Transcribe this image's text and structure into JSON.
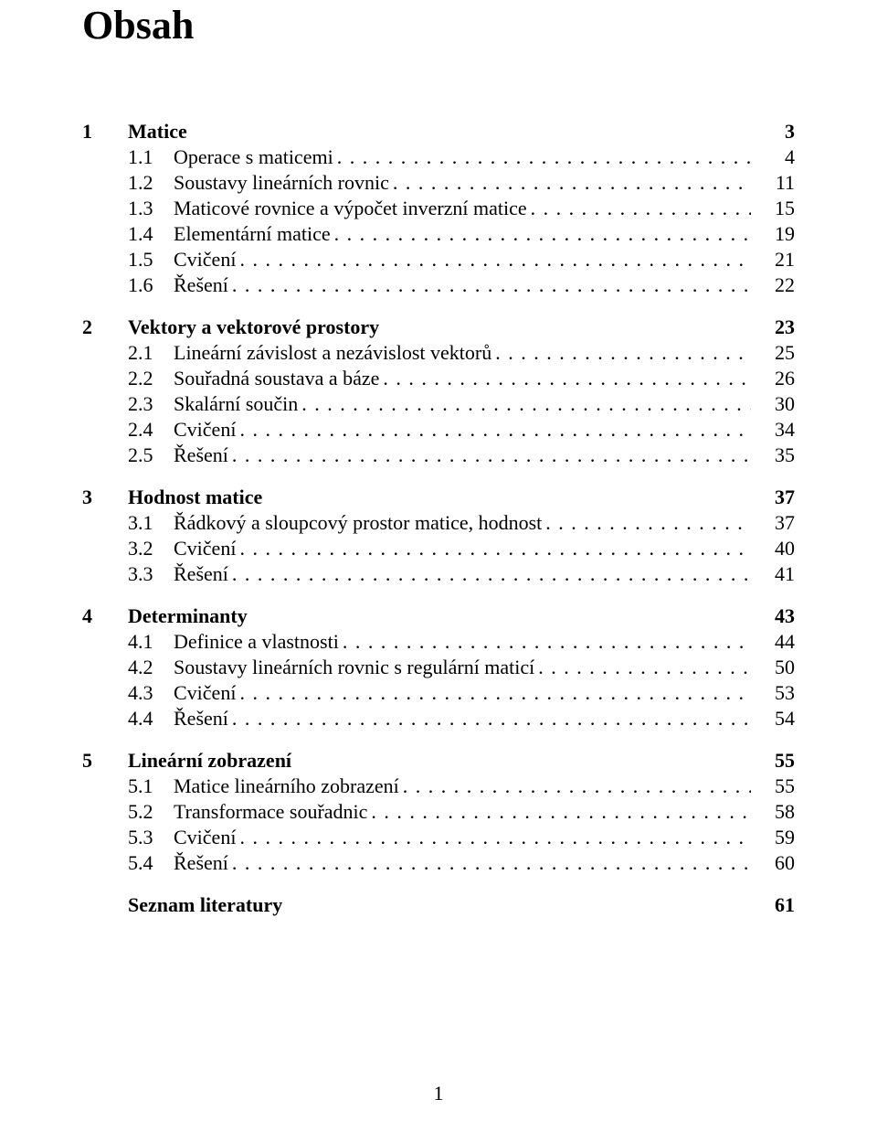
{
  "title": "Obsah",
  "page_number": "1",
  "chapters": [
    {
      "num": "1",
      "title": "Matice",
      "page": "3",
      "sections": [
        {
          "num": "1.1",
          "title": "Operace s maticemi",
          "page": "4"
        },
        {
          "num": "1.2",
          "title": "Soustavy lineárních rovnic",
          "page": "11"
        },
        {
          "num": "1.3",
          "title": "Maticové rovnice a výpočet inverzní matice",
          "page": "15"
        },
        {
          "num": "1.4",
          "title": "Elementární matice",
          "page": "19"
        },
        {
          "num": "1.5",
          "title": "Cvičení",
          "page": "21"
        },
        {
          "num": "1.6",
          "title": "Řešení",
          "page": "22"
        }
      ]
    },
    {
      "num": "2",
      "title": "Vektory a vektorové prostory",
      "page": "23",
      "sections": [
        {
          "num": "2.1",
          "title": "Lineární závislost a nezávislost vektorů",
          "page": "25"
        },
        {
          "num": "2.2",
          "title": "Souřadná soustava a báze",
          "page": "26"
        },
        {
          "num": "2.3",
          "title": "Skalární součin",
          "page": "30"
        },
        {
          "num": "2.4",
          "title": "Cvičení",
          "page": "34"
        },
        {
          "num": "2.5",
          "title": "Řešení",
          "page": "35"
        }
      ]
    },
    {
      "num": "3",
      "title": "Hodnost matice",
      "page": "37",
      "sections": [
        {
          "num": "3.1",
          "title": "Řádkový a sloupcový prostor matice, hodnost",
          "page": "37"
        },
        {
          "num": "3.2",
          "title": "Cvičení",
          "page": "40"
        },
        {
          "num": "3.3",
          "title": "Řešení",
          "page": "41"
        }
      ]
    },
    {
      "num": "4",
      "title": "Determinanty",
      "page": "43",
      "sections": [
        {
          "num": "4.1",
          "title": "Definice a vlastnosti",
          "page": "44"
        },
        {
          "num": "4.2",
          "title": "Soustavy lineárních rovnic s regulární maticí",
          "page": "50"
        },
        {
          "num": "4.3",
          "title": "Cvičení",
          "page": "53"
        },
        {
          "num": "4.4",
          "title": "Řešení",
          "page": "54"
        }
      ]
    },
    {
      "num": "5",
      "title": "Lineární zobrazení",
      "page": "55",
      "sections": [
        {
          "num": "5.1",
          "title": "Matice lineárního zobrazení",
          "page": "55"
        },
        {
          "num": "5.2",
          "title": "Transformace souřadnic",
          "page": "58"
        },
        {
          "num": "5.3",
          "title": "Cvičení",
          "page": "59"
        },
        {
          "num": "5.4",
          "title": "Řešení",
          "page": "60"
        }
      ]
    },
    {
      "num": "",
      "title": "Seznam literatury",
      "page": "61",
      "sections": []
    }
  ]
}
